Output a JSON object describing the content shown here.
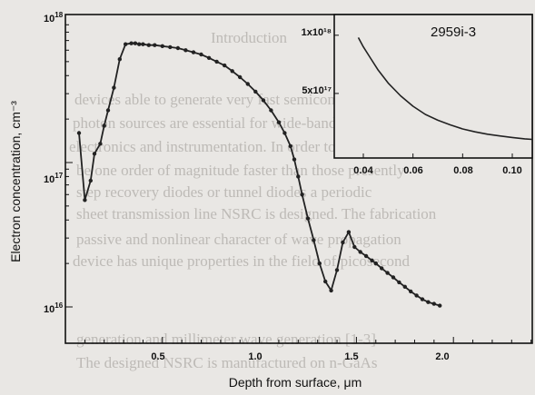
{
  "background_text": [
    "Introduction",
    "devices able to generate very fast semiconductor",
    "photon sources are essential for wide-band high speed",
    "electronics and instrumentation. In order to obtain",
    "be one order of magnitude faster than those presently",
    "step recovery diodes or tunnel diodes a periodic",
    "sheet transmission line NSRC is designed. The fabrication",
    "passive and nonlinear character of wave propagation",
    "device has unique properties in the field of picosecond",
    "generation and millimeter wave generation [1-3]",
    "The designed NSRC is manufactured on n-GaAs"
  ],
  "chart_data": [
    {
      "type": "line",
      "title": "",
      "xlabel": "Depth from surface, μm",
      "ylabel": "Electron concentration, cm⁻³",
      "xlim": [
        0,
        2.5
      ],
      "ylim": [
        1e+16,
        1e+18
      ],
      "yscale": "log",
      "grid": false,
      "x_ticks": [
        "0.5",
        "1.0",
        "1.5",
        "2.0"
      ],
      "y_ticks": [
        {
          "base": "10",
          "exp": "16",
          "value": 1e+16
        },
        {
          "base": "10",
          "exp": "17",
          "value": 1e+17
        },
        {
          "base": "10",
          "exp": "18",
          "value": 1e+18
        }
      ],
      "series": [
        {
          "x": [
            0.07,
            0.1,
            0.13,
            0.15,
            0.18,
            0.2,
            0.22,
            0.25,
            0.28,
            0.31,
            0.34,
            0.36,
            0.38,
            0.4,
            0.43,
            0.46,
            0.5,
            0.54,
            0.58,
            0.62,
            0.66,
            0.7,
            0.74,
            0.78,
            0.82,
            0.86,
            0.9,
            0.94,
            0.98,
            1.02,
            1.06,
            1.1,
            1.13,
            1.16,
            1.18,
            1.2,
            1.22,
            1.25,
            1.28,
            1.31,
            1.34,
            1.37,
            1.4,
            1.43,
            1.46,
            1.49,
            1.52,
            1.55,
            1.58,
            1.6,
            1.63,
            1.66,
            1.69,
            1.72,
            1.75,
            1.78,
            1.81,
            1.84,
            1.87,
            1.9,
            1.93
          ],
          "y": [
            1.6e+17,
            5.5e+16,
            7.5e+16,
            1.15e+17,
            1.35e+17,
            1.8e+17,
            2.3e+17,
            3.3e+17,
            5.2e+17,
            6.6e+17,
            6.7e+17,
            6.7e+17,
            6.6e+17,
            6.6e+17,
            6.5e+17,
            6.5e+17,
            6.4e+17,
            6.3e+17,
            6.2e+17,
            6e+17,
            5.8e+17,
            5.6e+17,
            5.3e+17,
            5e+17,
            4.7e+17,
            4.3e+17,
            3.9e+17,
            3.5e+17,
            3.1e+17,
            2.7e+17,
            2.3e+17,
            1.9e+17,
            1.6e+17,
            1.3e+17,
            1.05e+17,
            8e+16,
            6e+16,
            4.1e+16,
            2.9e+16,
            2e+16,
            1.5e+16,
            1.3e+16,
            1.8e+16,
            2.8e+16,
            3.3e+16,
            2.6e+16,
            2.4e+16,
            2.25e+16,
            2.1e+16,
            2e+16,
            1.85e+16,
            1.72e+16,
            1.6e+16,
            1.48e+16,
            1.38e+16,
            1.28e+16,
            1.2e+16,
            1.13e+16,
            1.08e+16,
            1.05e+16,
            1.02e+16
          ]
        }
      ]
    },
    {
      "type": "line",
      "title": "2959i-3",
      "xlim": [
        0.03,
        0.11
      ],
      "ylim": [
        0,
        1.1e+18
      ],
      "x_ticks": [
        "0.04",
        "0.06",
        "0.08",
        "0.10"
      ],
      "y_ticks": [
        {
          "label": "1x10¹⁸",
          "value": 1e+18
        },
        {
          "label": "5x10¹⁷",
          "value": 5e+17
        }
      ],
      "series": [
        {
          "x": [
            0.038,
            0.04,
            0.043,
            0.046,
            0.05,
            0.055,
            0.06,
            0.065,
            0.07,
            0.075,
            0.08,
            0.085,
            0.09,
            0.095,
            0.1,
            0.105,
            0.108
          ],
          "y": [
            9.8e+17,
            9e+17,
            8e+17,
            7e+17,
            5.9e+17,
            4.8e+17,
            3.9e+17,
            3.2e+17,
            2.7e+17,
            2.3e+17,
            1.95e+17,
            1.7e+17,
            1.5e+17,
            1.35e+17,
            1.22e+17,
            1.1e+17,
            1.05e+17
          ]
        }
      ]
    }
  ]
}
